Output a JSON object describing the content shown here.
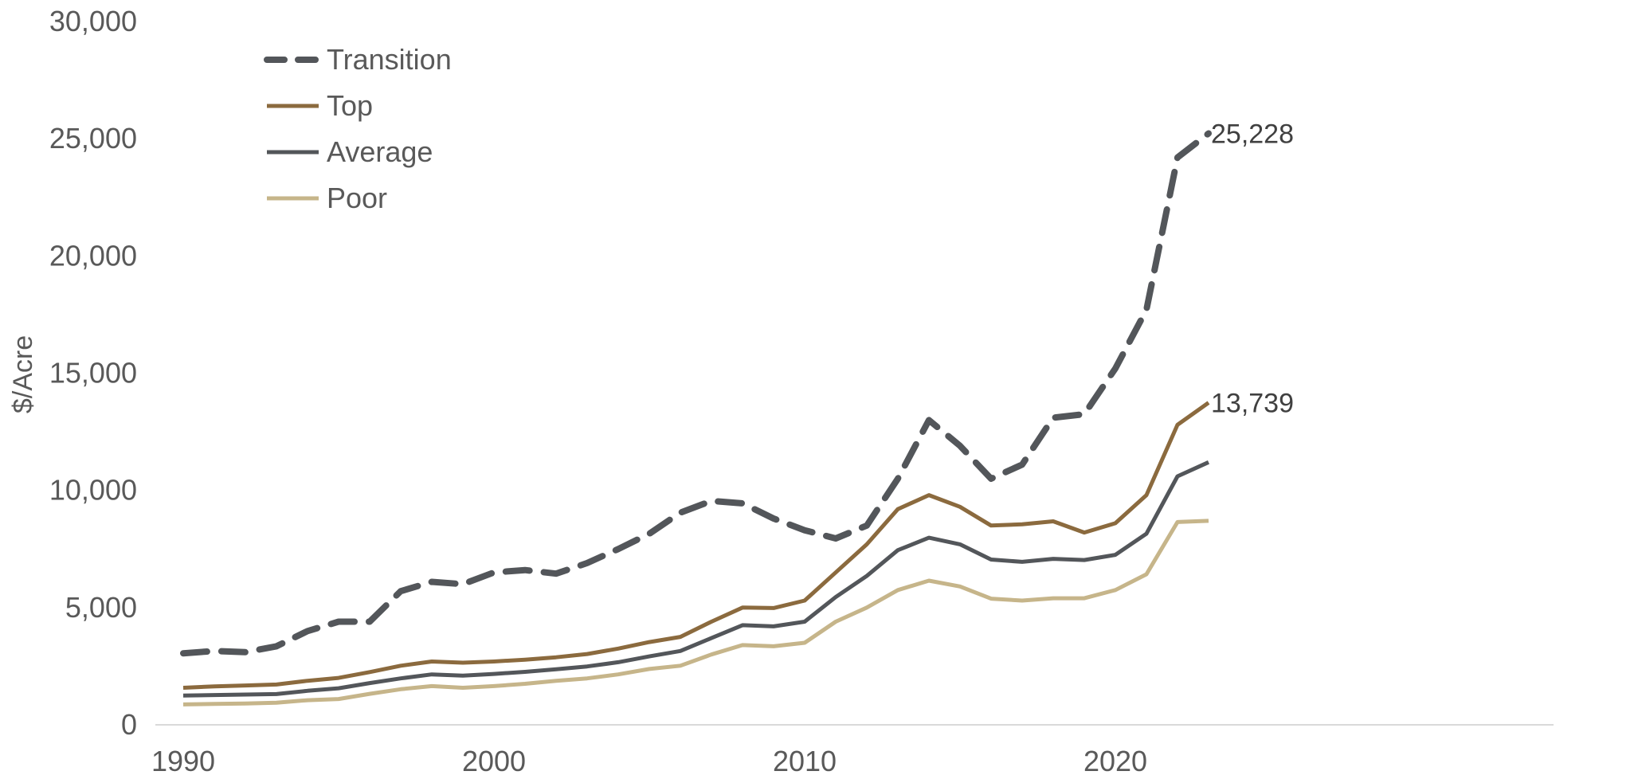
{
  "chart_data": {
    "type": "line",
    "title": "",
    "xlabel": "",
    "ylabel": "$/Acre",
    "xlim": [
      1990,
      2023
    ],
    "ylim": [
      0,
      30000
    ],
    "x_ticks": [
      1990,
      2000,
      2010,
      2020
    ],
    "x_tick_labels": [
      "1990",
      "2000",
      "2010",
      "2020"
    ],
    "y_ticks": [
      0,
      5000,
      10000,
      15000,
      20000,
      25000,
      30000
    ],
    "y_tick_labels": [
      "0",
      "5,000",
      "10,000",
      "15,000",
      "20,000",
      "25,000",
      "30,000"
    ],
    "grid": false,
    "legend_position": "top-left",
    "x": [
      1990,
      1991,
      1992,
      1993,
      1994,
      1995,
      1996,
      1997,
      1998,
      1999,
      2000,
      2001,
      2002,
      2003,
      2004,
      2005,
      2006,
      2007,
      2008,
      2009,
      2010,
      2011,
      2012,
      2013,
      2014,
      2015,
      2016,
      2017,
      2018,
      2019,
      2020,
      2021,
      2022,
      2023
    ],
    "series": [
      {
        "name": "Transition",
        "color": "#53565a",
        "style": "dashed",
        "values": [
          3050,
          3150,
          3100,
          3350,
          4000,
          4400,
          4400,
          5700,
          6100,
          6000,
          6500,
          6600,
          6450,
          6900,
          7500,
          8150,
          9050,
          9550,
          9450,
          8800,
          8300,
          7950,
          8500,
          10500,
          13000,
          11900,
          10500,
          11100,
          13100,
          13250,
          15200,
          17700,
          24200,
          25228
        ]
      },
      {
        "name": "Top",
        "color": "#8b6a3e",
        "style": "solid",
        "values": [
          1580,
          1640,
          1680,
          1720,
          1880,
          2000,
          2250,
          2520,
          2700,
          2650,
          2700,
          2780,
          2880,
          3020,
          3250,
          3530,
          3750,
          4400,
          5000,
          4980,
          5300,
          6500,
          7700,
          9200,
          9800,
          9300,
          8500,
          8550,
          8680,
          8200,
          8600,
          9800,
          12800,
          13739
        ]
      },
      {
        "name": "Average",
        "color": "#53565a",
        "style": "solid",
        "values": [
          1250,
          1270,
          1290,
          1310,
          1450,
          1560,
          1780,
          1980,
          2150,
          2100,
          2170,
          2260,
          2370,
          2490,
          2670,
          2920,
          3150,
          3700,
          4250,
          4200,
          4400,
          5450,
          6350,
          7450,
          7980,
          7700,
          7050,
          6950,
          7080,
          7030,
          7250,
          8150,
          10600,
          11200
        ]
      },
      {
        "name": "Poor",
        "color": "#c6b58a",
        "style": "solid",
        "values": [
          870,
          890,
          910,
          940,
          1050,
          1100,
          1320,
          1520,
          1650,
          1580,
          1650,
          1750,
          1880,
          1980,
          2150,
          2380,
          2520,
          3000,
          3400,
          3350,
          3500,
          4400,
          5000,
          5750,
          6150,
          5900,
          5380,
          5300,
          5400,
          5400,
          5750,
          6420,
          8650,
          8700
        ]
      }
    ],
    "annotations": [
      {
        "series": "Transition",
        "x": 2023,
        "y": 25228,
        "text": "25,228"
      },
      {
        "series": "Top",
        "x": 2023,
        "y": 13739,
        "text": "13,739"
      }
    ]
  }
}
